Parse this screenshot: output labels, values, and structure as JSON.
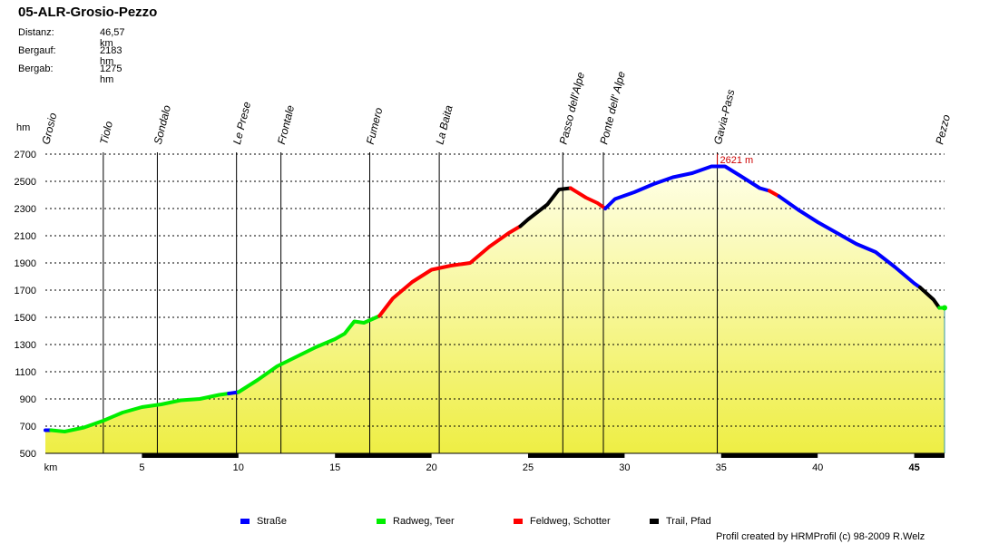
{
  "title": "05-ALR-Grosio-Pezzo",
  "stats": [
    {
      "label": "Distanz:",
      "value": "46,57 km"
    },
    {
      "label": "Bergauf:",
      "value": "2183 hm"
    },
    {
      "label": "Bergab:",
      "value": "1275 hm"
    }
  ],
  "legend": [
    {
      "label": "Straße",
      "color": "#0000ff"
    },
    {
      "label": "Radweg, Teer",
      "color": "#00ee00"
    },
    {
      "label": "Feldweg, Schotter",
      "color": "#ff0000"
    },
    {
      "label": "Trail, Pfad",
      "color": "#000000"
    }
  ],
  "credit": "Profil created by HRMProfil (c) 98-2009 R.Welz",
  "chart_data": {
    "type": "area",
    "ylabel": "hm",
    "xlabel": "km",
    "xlim": [
      0,
      46.57
    ],
    "ylim": [
      500,
      2700
    ],
    "yticks": [
      500,
      700,
      900,
      1100,
      1300,
      1500,
      1700,
      1900,
      2100,
      2300,
      2500,
      2700
    ],
    "xticks": [
      5,
      10,
      15,
      20,
      25,
      30,
      35,
      40,
      45
    ],
    "fill_color": "#eeee44",
    "grid": "horizontal dotted",
    "peak_label": "2621 m",
    "peak": {
      "x": 34.8,
      "y": 2621
    },
    "waypoints": [
      {
        "name": "Grosio",
        "km": 0.0
      },
      {
        "name": "Tiolo",
        "km": 3.0
      },
      {
        "name": "Sondalo",
        "km": 5.8
      },
      {
        "name": "Le Prese",
        "km": 9.9
      },
      {
        "name": "Frontale",
        "km": 12.2
      },
      {
        "name": "Fumero",
        "km": 16.8
      },
      {
        "name": "La Baita",
        "km": 20.4
      },
      {
        "name": "Passo dell'Alpe",
        "km": 26.8
      },
      {
        "name": "Ponte dell' Alpe",
        "km": 28.9
      },
      {
        "name": "Gavia-Pass",
        "km": 34.8
      },
      {
        "name": "Pezzo",
        "km": 46.57
      }
    ],
    "series": [
      {
        "surface": "Straße",
        "points": [
          [
            0,
            670
          ],
          [
            0.3,
            670
          ]
        ]
      },
      {
        "surface": "Radweg, Teer",
        "points": [
          [
            0.3,
            670
          ],
          [
            1,
            660
          ],
          [
            2,
            690
          ],
          [
            3,
            740
          ],
          [
            4,
            800
          ],
          [
            5,
            840
          ],
          [
            6,
            860
          ],
          [
            7,
            890
          ],
          [
            8,
            900
          ],
          [
            9,
            930
          ],
          [
            9.5,
            940
          ]
        ]
      },
      {
        "surface": "Straße",
        "points": [
          [
            9.5,
            940
          ],
          [
            10,
            950
          ]
        ]
      },
      {
        "surface": "Radweg, Teer",
        "points": [
          [
            10,
            950
          ],
          [
            11,
            1040
          ],
          [
            12,
            1140
          ],
          [
            13,
            1210
          ],
          [
            14,
            1280
          ],
          [
            15,
            1340
          ],
          [
            15.5,
            1380
          ],
          [
            16,
            1470
          ],
          [
            16.5,
            1460
          ],
          [
            17.3,
            1510
          ]
        ]
      },
      {
        "surface": "Feldweg, Schotter",
        "points": [
          [
            17.3,
            1510
          ],
          [
            18,
            1640
          ],
          [
            19,
            1760
          ],
          [
            20,
            1850
          ],
          [
            21,
            1880
          ],
          [
            22,
            1900
          ],
          [
            23,
            2020
          ],
          [
            24,
            2120
          ],
          [
            24.6,
            2170
          ]
        ]
      },
      {
        "surface": "Trail, Pfad",
        "points": [
          [
            24.6,
            2170
          ],
          [
            25,
            2220
          ],
          [
            26,
            2330
          ],
          [
            26.6,
            2440
          ],
          [
            27.2,
            2450
          ]
        ]
      },
      {
        "surface": "Feldweg, Schotter",
        "points": [
          [
            27.2,
            2450
          ],
          [
            28,
            2380
          ],
          [
            28.6,
            2340
          ],
          [
            29,
            2300
          ]
        ]
      },
      {
        "surface": "Straße",
        "points": [
          [
            29,
            2300
          ],
          [
            29.5,
            2370
          ],
          [
            30.5,
            2420
          ],
          [
            31.5,
            2480
          ],
          [
            32.5,
            2530
          ],
          [
            33.5,
            2560
          ],
          [
            34.5,
            2610
          ],
          [
            35.2,
            2610
          ],
          [
            36,
            2540
          ],
          [
            37,
            2450
          ],
          [
            37.5,
            2430
          ]
        ]
      },
      {
        "surface": "Feldweg, Schotter",
        "points": [
          [
            37.5,
            2430
          ],
          [
            38,
            2390
          ]
        ]
      },
      {
        "surface": "Straße",
        "points": [
          [
            38,
            2390
          ],
          [
            39,
            2290
          ],
          [
            40,
            2200
          ],
          [
            41,
            2120
          ],
          [
            42,
            2040
          ],
          [
            43,
            1980
          ],
          [
            44,
            1870
          ],
          [
            45,
            1750
          ],
          [
            45.3,
            1720
          ]
        ]
      },
      {
        "surface": "Trail, Pfad",
        "points": [
          [
            45.3,
            1720
          ],
          [
            46,
            1630
          ],
          [
            46.3,
            1570
          ]
        ]
      },
      {
        "surface": "Radweg, Teer",
        "points": [
          [
            46.3,
            1570
          ],
          [
            46.57,
            1570
          ]
        ]
      }
    ],
    "surface_bar": [
      [
        0,
        0.3,
        "Straße"
      ],
      [
        0.3,
        9.5,
        "Radweg, Teer"
      ],
      [
        9.5,
        10,
        "Straße"
      ],
      [
        10,
        17.3,
        "Radweg, Teer"
      ],
      [
        17.3,
        24.6,
        "Feldweg, Schotter"
      ],
      [
        24.6,
        27.2,
        "Trail, Pfad"
      ],
      [
        27.2,
        29,
        "Feldweg, Schotter"
      ],
      [
        29,
        37.5,
        "Straße"
      ],
      [
        37.5,
        38,
        "Feldweg, Schotter"
      ],
      [
        38,
        45.3,
        "Straße"
      ],
      [
        45.3,
        46.3,
        "Trail, Pfad"
      ],
      [
        46.3,
        46.57,
        "Radweg, Teer"
      ]
    ],
    "surface_bar_colors": {
      "Straße": "#000000",
      "Radweg, Teer": "#000000",
      "Feldweg, Schotter": "#000000",
      "Trail, Pfad": "#000000"
    }
  }
}
